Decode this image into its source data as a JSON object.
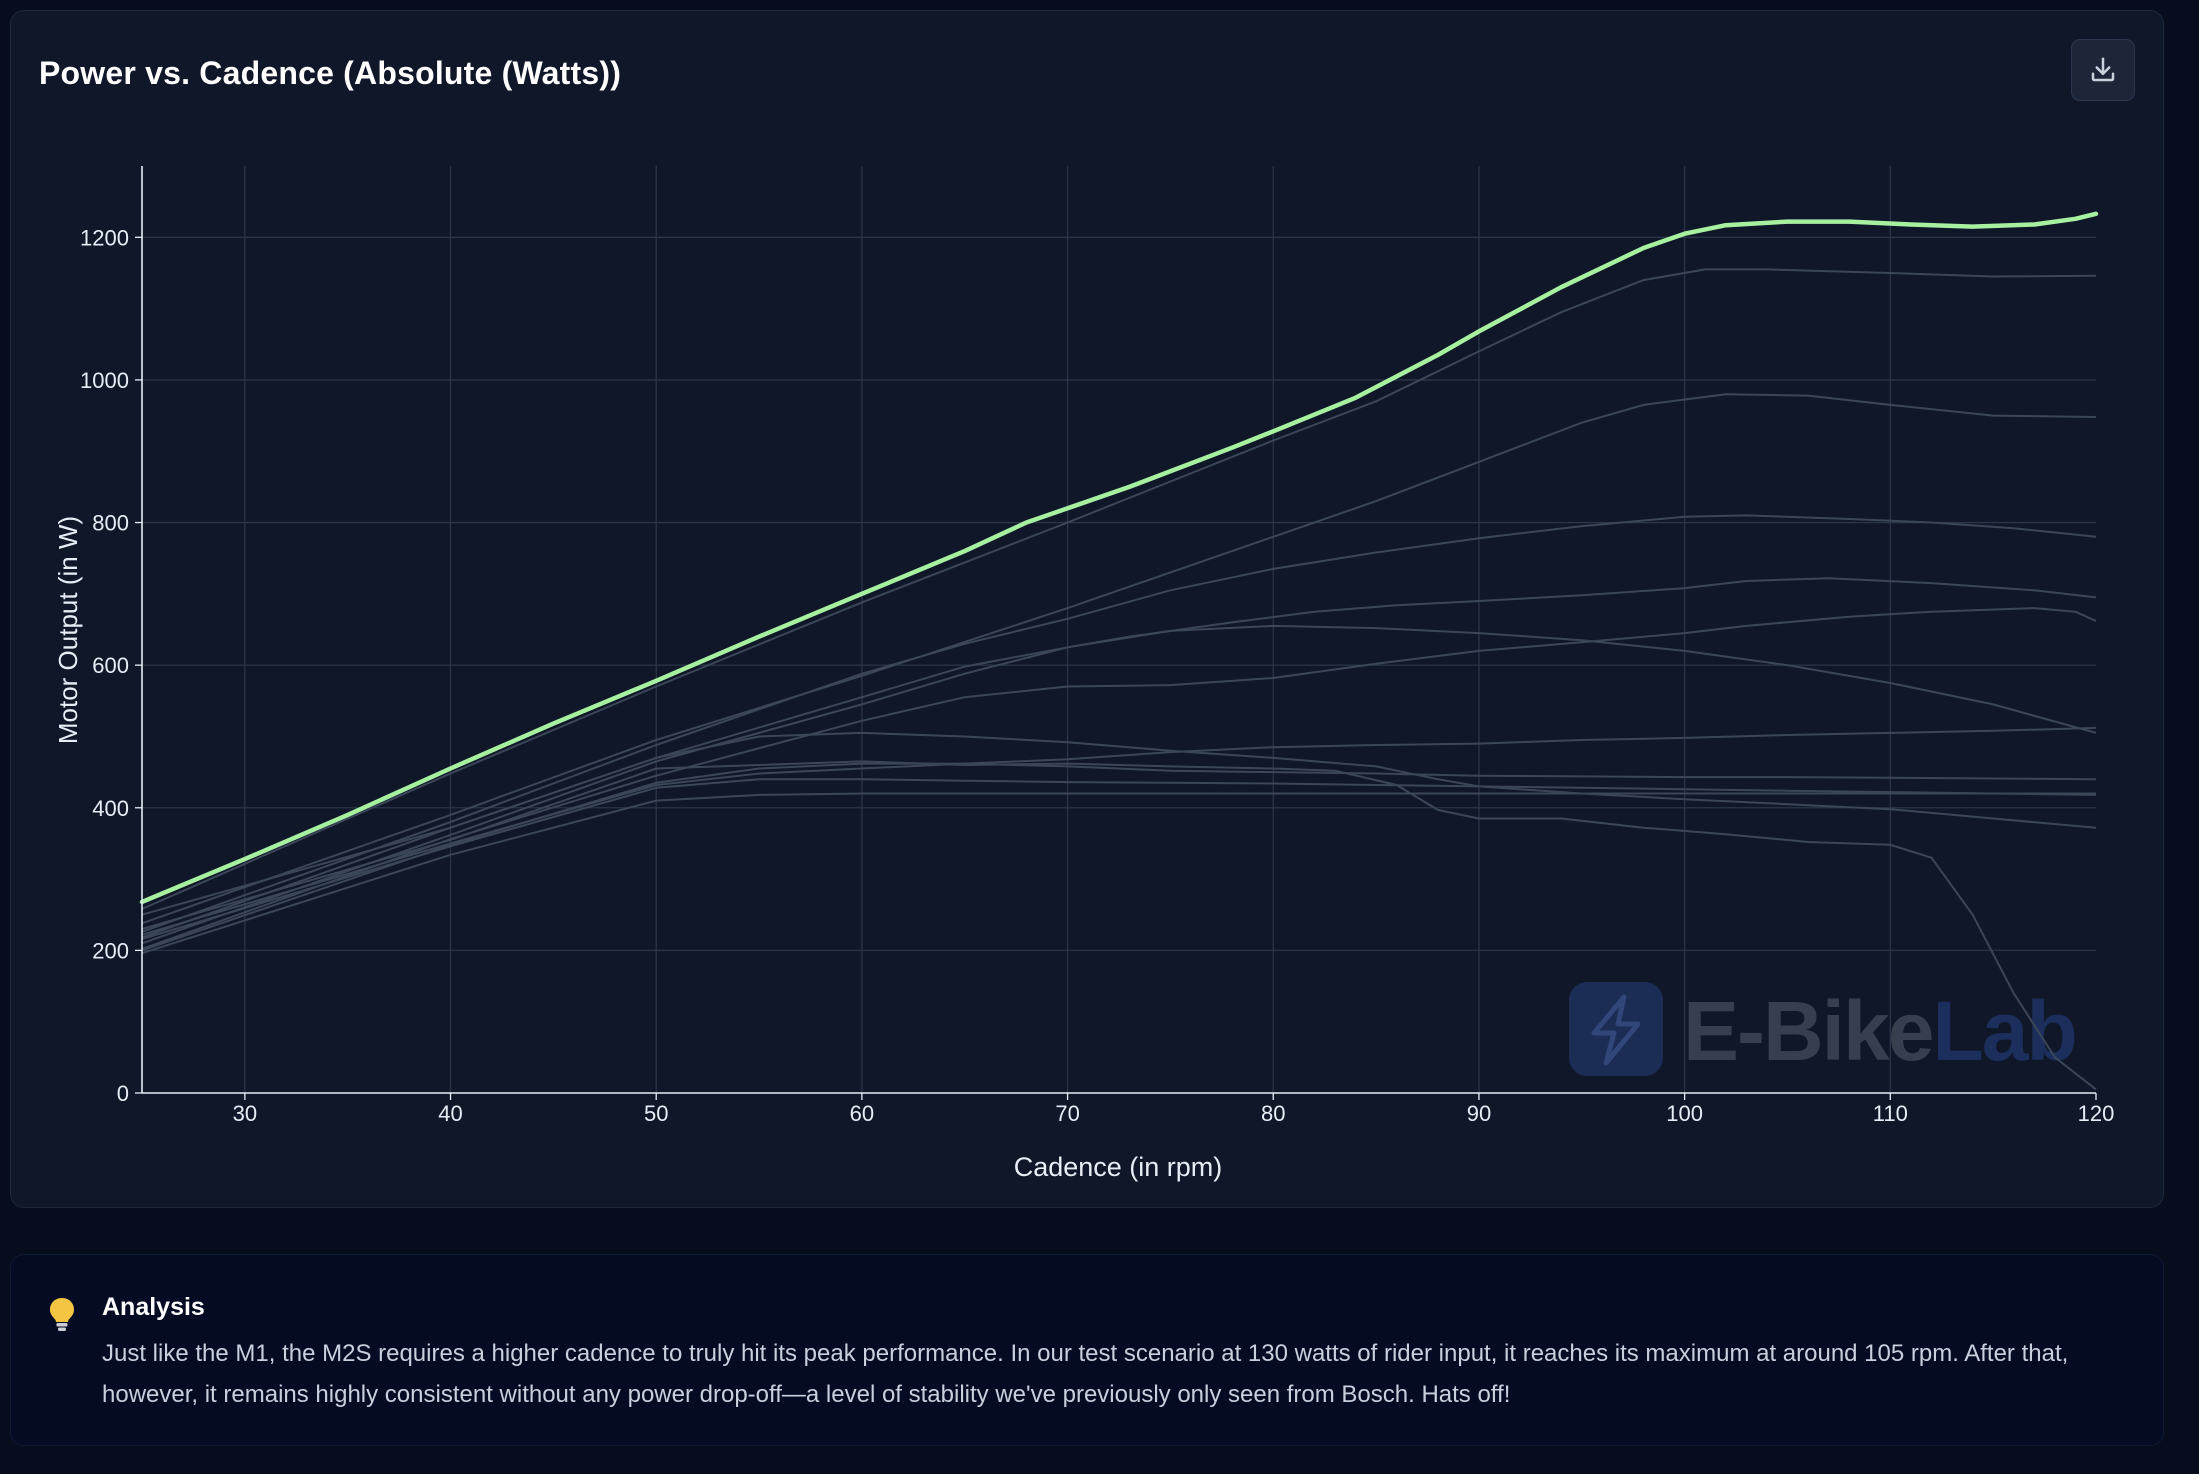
{
  "chart": {
    "title": "Power vs. Cadence (Absolute (Watts))"
  },
  "colors": {
    "highlight": "#a6f0a0",
    "other_series": "#3b4759",
    "grid": "#2a3648",
    "axis": "#e8edf5",
    "watermark_badge": "#1b2c55",
    "watermark_text_e_bike": "#363f4d",
    "watermark_text_lab": "#1c2f5c"
  },
  "watermark": {
    "text_e_bike": "E-Bike",
    "text_lab": "Lab",
    "icon": "lightning-bolt-icon"
  },
  "toolbar": {
    "download_icon": "download-icon"
  },
  "analysis": {
    "icon": "lightbulb-icon",
    "title": "Analysis",
    "text": "Just like the M1, the M2S requires a higher cadence to truly hit its peak performance. In our test scenario at 130 watts of rider input, it reaches its maximum at around 105 rpm. After that, however, it remains highly consistent without any power drop-off—a level of stability we've previously only seen from Bosch. Hats off!"
  },
  "chart_data": {
    "type": "line",
    "title": "Power vs. Cadence (Absolute (Watts))",
    "xlabel": "Cadence (in rpm)",
    "ylabel": "Motor Output (in W)",
    "xlim": [
      25,
      120
    ],
    "ylim": [
      0,
      1300
    ],
    "xticks": [
      30,
      40,
      50,
      60,
      70,
      80,
      90,
      100,
      110,
      120
    ],
    "yticks": [
      0,
      200,
      400,
      600,
      800,
      1000,
      1200
    ],
    "grid": true,
    "legend": "none",
    "highlighted_series": {
      "points": [
        [
          25,
          268
        ],
        [
          30,
          328
        ],
        [
          35,
          390
        ],
        [
          40,
          455
        ],
        [
          45,
          518
        ],
        [
          50,
          578
        ],
        [
          55,
          640
        ],
        [
          60,
          700
        ],
        [
          65,
          760
        ],
        [
          68,
          800
        ],
        [
          70,
          820
        ],
        [
          73,
          850
        ],
        [
          78,
          905
        ],
        [
          80,
          928
        ],
        [
          84,
          975
        ],
        [
          88,
          1035
        ],
        [
          90,
          1068
        ],
        [
          94,
          1130
        ],
        [
          98,
          1185
        ],
        [
          100,
          1205
        ],
        [
          102,
          1217
        ],
        [
          105,
          1222
        ],
        [
          108,
          1222
        ],
        [
          111,
          1218
        ],
        [
          114,
          1215
        ],
        [
          117,
          1218
        ],
        [
          119,
          1226
        ],
        [
          120,
          1233
        ]
      ]
    },
    "other_series": [
      {
        "points": [
          [
            25,
            258
          ],
          [
            40,
            448
          ],
          [
            50,
            570
          ],
          [
            60,
            688
          ],
          [
            70,
            800
          ],
          [
            80,
            915
          ],
          [
            85,
            970
          ],
          [
            90,
            1040
          ],
          [
            94,
            1095
          ],
          [
            98,
            1140
          ],
          [
            101,
            1155
          ],
          [
            104,
            1155
          ],
          [
            110,
            1150
          ],
          [
            115,
            1145
          ],
          [
            120,
            1146
          ]
        ]
      },
      {
        "points": [
          [
            25,
            238
          ],
          [
            40,
            390
          ],
          [
            50,
            495
          ],
          [
            60,
            585
          ],
          [
            70,
            680
          ],
          [
            80,
            780
          ],
          [
            85,
            830
          ],
          [
            90,
            885
          ],
          [
            95,
            940
          ],
          [
            98,
            965
          ],
          [
            102,
            980
          ],
          [
            106,
            978
          ],
          [
            110,
            965
          ],
          [
            115,
            950
          ],
          [
            120,
            948
          ]
        ]
      },
      {
        "points": [
          [
            25,
            226
          ],
          [
            40,
            380
          ],
          [
            50,
            488
          ],
          [
            60,
            588
          ],
          [
            65,
            630
          ],
          [
            70,
            665
          ],
          [
            75,
            705
          ],
          [
            80,
            735
          ],
          [
            85,
            758
          ],
          [
            90,
            778
          ],
          [
            95,
            795
          ],
          [
            100,
            808
          ],
          [
            103,
            810
          ],
          [
            108,
            805
          ],
          [
            112,
            800
          ],
          [
            116,
            792
          ],
          [
            120,
            780
          ]
        ]
      },
      {
        "points": [
          [
            25,
            218
          ],
          [
            40,
            372
          ],
          [
            50,
            470
          ],
          [
            60,
            555
          ],
          [
            65,
            598
          ],
          [
            70,
            625
          ],
          [
            73,
            640
          ],
          [
            78,
            660
          ],
          [
            82,
            675
          ],
          [
            86,
            684
          ],
          [
            90,
            690
          ],
          [
            95,
            698
          ],
          [
            100,
            708
          ],
          [
            103,
            718
          ],
          [
            107,
            722
          ],
          [
            112,
            715
          ],
          [
            117,
            705
          ],
          [
            120,
            695
          ]
        ]
      },
      {
        "points": [
          [
            25,
            210
          ],
          [
            40,
            362
          ],
          [
            50,
            465
          ],
          [
            60,
            545
          ],
          [
            65,
            588
          ],
          [
            70,
            625
          ],
          [
            75,
            648
          ],
          [
            80,
            655
          ],
          [
            85,
            652
          ],
          [
            90,
            645
          ],
          [
            95,
            635
          ],
          [
            100,
            620
          ],
          [
            105,
            600
          ],
          [
            110,
            575
          ],
          [
            115,
            545
          ],
          [
            120,
            505
          ]
        ]
      },
      {
        "points": [
          [
            25,
            202
          ],
          [
            40,
            356
          ],
          [
            50,
            445
          ],
          [
            60,
            522
          ],
          [
            65,
            555
          ],
          [
            70,
            570
          ],
          [
            75,
            572
          ],
          [
            80,
            582
          ],
          [
            85,
            602
          ],
          [
            90,
            620
          ],
          [
            95,
            632
          ],
          [
            100,
            645
          ],
          [
            103,
            655
          ],
          [
            108,
            668
          ],
          [
            112,
            675
          ],
          [
            117,
            680
          ],
          [
            119,
            675
          ],
          [
            120,
            662
          ]
        ]
      },
      {
        "points": [
          [
            25,
            250
          ],
          [
            40,
            372
          ],
          [
            50,
            470
          ],
          [
            55,
            500
          ],
          [
            60,
            505
          ],
          [
            65,
            500
          ],
          [
            70,
            492
          ],
          [
            75,
            480
          ],
          [
            80,
            470
          ],
          [
            85,
            458
          ],
          [
            88,
            440
          ],
          [
            90,
            430
          ],
          [
            95,
            420
          ],
          [
            100,
            412
          ],
          [
            105,
            405
          ],
          [
            110,
            398
          ],
          [
            115,
            385
          ],
          [
            120,
            372
          ]
        ]
      },
      {
        "points": [
          [
            25,
            230
          ],
          [
            40,
            355
          ],
          [
            50,
            455
          ],
          [
            55,
            460
          ],
          [
            60,
            465
          ],
          [
            65,
            460
          ],
          [
            70,
            462
          ],
          [
            75,
            458
          ],
          [
            80,
            455
          ],
          [
            83,
            452
          ],
          [
            86,
            432
          ],
          [
            88,
            397
          ],
          [
            90,
            385
          ],
          [
            94,
            385
          ],
          [
            98,
            372
          ],
          [
            102,
            363
          ],
          [
            106,
            352
          ],
          [
            110,
            348
          ],
          [
            112,
            330
          ],
          [
            114,
            250
          ],
          [
            116,
            140
          ],
          [
            118,
            50
          ],
          [
            120,
            5
          ]
        ]
      },
      {
        "points": [
          [
            25,
            200
          ],
          [
            40,
            348
          ],
          [
            50,
            435
          ],
          [
            55,
            455
          ],
          [
            60,
            462
          ],
          [
            65,
            462
          ],
          [
            70,
            458
          ],
          [
            75,
            452
          ],
          [
            80,
            450
          ],
          [
            85,
            448
          ],
          [
            90,
            445
          ],
          [
            95,
            444
          ],
          [
            100,
            443
          ],
          [
            105,
            443
          ],
          [
            110,
            442
          ],
          [
            115,
            441
          ],
          [
            120,
            440
          ]
        ]
      },
      {
        "points": [
          [
            25,
            222
          ],
          [
            40,
            350
          ],
          [
            50,
            432
          ],
          [
            55,
            448
          ],
          [
            60,
            455
          ],
          [
            65,
            462
          ],
          [
            70,
            468
          ],
          [
            75,
            478
          ],
          [
            80,
            485
          ],
          [
            85,
            488
          ],
          [
            90,
            490
          ],
          [
            95,
            495
          ],
          [
            100,
            498
          ],
          [
            105,
            502
          ],
          [
            110,
            505
          ],
          [
            115,
            508
          ],
          [
            120,
            512
          ]
        ]
      },
      {
        "points": [
          [
            25,
            216
          ],
          [
            40,
            346
          ],
          [
            50,
            428
          ],
          [
            55,
            440
          ],
          [
            60,
            440
          ],
          [
            65,
            438
          ],
          [
            70,
            436
          ],
          [
            75,
            435
          ],
          [
            80,
            434
          ],
          [
            85,
            432
          ],
          [
            90,
            430
          ],
          [
            95,
            428
          ],
          [
            100,
            426
          ],
          [
            105,
            424
          ],
          [
            110,
            422
          ],
          [
            115,
            420
          ],
          [
            120,
            418
          ]
        ]
      },
      {
        "points": [
          [
            25,
            196
          ],
          [
            40,
            334
          ],
          [
            50,
            410
          ],
          [
            55,
            418
          ],
          [
            60,
            420
          ],
          [
            65,
            420
          ],
          [
            70,
            420
          ],
          [
            75,
            420
          ],
          [
            80,
            420
          ],
          [
            85,
            420
          ],
          [
            90,
            420
          ],
          [
            95,
            420
          ],
          [
            100,
            420
          ],
          [
            105,
            420
          ],
          [
            110,
            420
          ],
          [
            115,
            420
          ],
          [
            120,
            420
          ]
        ]
      }
    ]
  }
}
